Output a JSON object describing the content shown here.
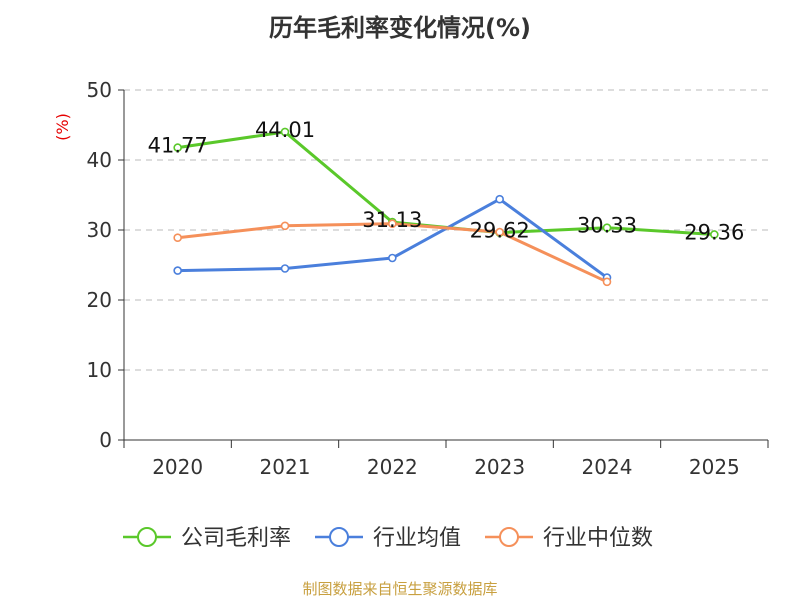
{
  "chart_data": {
    "type": "line",
    "title": "历年毛利率变化情况(%)",
    "ylabel": "(%)",
    "xlabel": "",
    "categories": [
      "2020",
      "2021",
      "2022",
      "2023",
      "2024",
      "2025"
    ],
    "ylim": [
      0,
      50
    ],
    "yticks": [
      0,
      10,
      20,
      30,
      40,
      50
    ],
    "grid": true,
    "legend_position": "bottom",
    "series": [
      {
        "name": "公司毛利率",
        "color": "#5ac82a",
        "values": [
          41.77,
          44.01,
          31.13,
          29.62,
          30.33,
          29.36
        ],
        "labels": [
          "41.77",
          "44.01",
          "31.13",
          "29.62",
          "30.33",
          "29.36"
        ]
      },
      {
        "name": "行业均值",
        "color": "#4a7fdc",
        "values": [
          24.2,
          24.5,
          26.0,
          34.4,
          23.2,
          null
        ]
      },
      {
        "name": "行业中位数",
        "color": "#f5905a",
        "values": [
          28.9,
          30.6,
          30.9,
          29.7,
          22.6,
          null
        ]
      }
    ]
  },
  "source": "制图数据来自恒生聚源数据库"
}
